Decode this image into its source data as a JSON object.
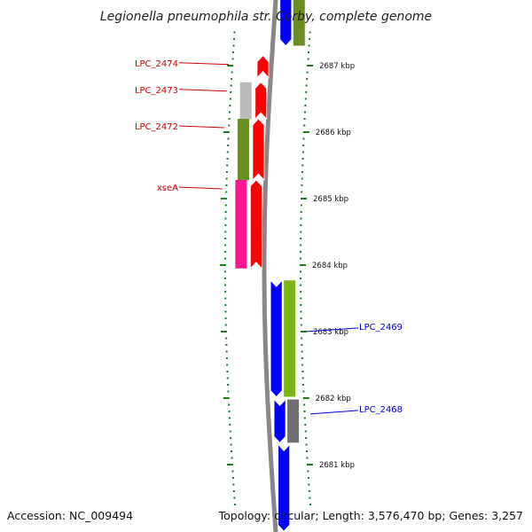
{
  "title": "Legionella pneumophila str. Corby, complete genome",
  "accession": "Accession: NC_009494",
  "topology": "Topology: circular; Length: 3,576,470 bp; Genes: 3,257",
  "colors": {
    "tick": "#1e7a1e",
    "forward_label": "#cc0000",
    "reverse_label": "#0000cc",
    "backbone": "#888888",
    "forward_cds": "#ff0000",
    "reverse_cds": "#0000ff"
  },
  "ruler": {
    "unit": "kbp",
    "labels": [
      {
        "kbp": 2687,
        "text": "2687 kbp"
      },
      {
        "kbp": 2686,
        "text": "2686 kbp"
      },
      {
        "kbp": 2685,
        "text": "2685 kbp"
      },
      {
        "kbp": 2684,
        "text": "2684 kbp"
      },
      {
        "kbp": 2683,
        "text": "2683 kbp"
      },
      {
        "kbp": 2682,
        "text": "2682 kbp"
      },
      {
        "kbp": 2681,
        "text": "2681 kbp"
      }
    ],
    "minor_step_kbp": 0.1
  },
  "features": [
    {
      "name": "LPC_2474",
      "strand": "forward",
      "start_kbp": 2687.15,
      "end_kbp": 2686.82,
      "cog_color": null,
      "labeled": true
    },
    {
      "name": "LPC_2473",
      "strand": "forward",
      "start_kbp": 2686.75,
      "end_kbp": 2686.2,
      "cog_color": "#bbbbbb",
      "labeled": true
    },
    {
      "name": "LPC_2472",
      "strand": "forward",
      "start_kbp": 2686.2,
      "end_kbp": 2685.28,
      "cog_color": "#6b8e23",
      "labeled": true
    },
    {
      "name": "xseA",
      "strand": "forward",
      "start_kbp": 2685.28,
      "end_kbp": 2683.95,
      "cog_color": "#ff1493",
      "labeled": true
    },
    {
      "name": "LPC_2469",
      "strand": "reverse",
      "start_kbp": 2683.77,
      "end_kbp": 2682.02,
      "cog_color": "#7cb518",
      "labeled": true
    },
    {
      "name": "LPC_2468",
      "strand": "reverse",
      "start_kbp": 2681.98,
      "end_kbp": 2681.33,
      "cog_color": "#707070",
      "labeled": true
    },
    {
      "name": "",
      "strand": "reverse",
      "start_kbp": 2681.3,
      "end_kbp": 2680.0,
      "cog_color": null,
      "labeled": false
    },
    {
      "name": "",
      "strand": "reverse",
      "start_kbp": 2688.2,
      "end_kbp": 2687.3,
      "cog_color": "#6b8e23",
      "labeled": false
    }
  ]
}
